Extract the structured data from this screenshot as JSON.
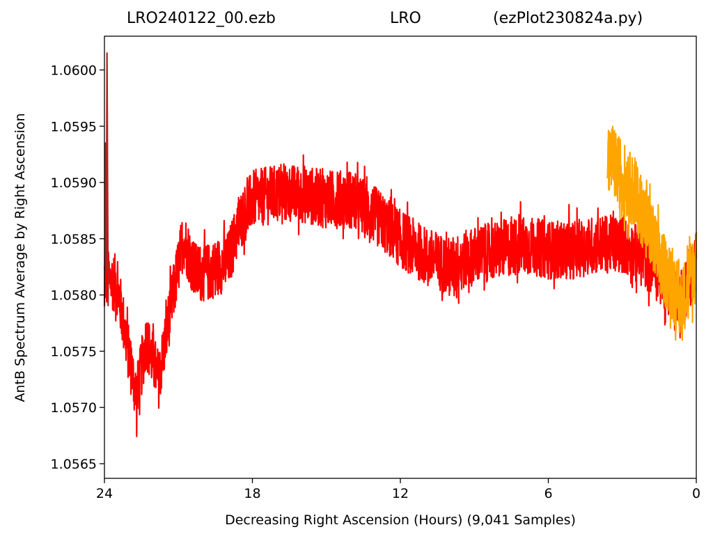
{
  "title": {
    "file": "LRO240122_00.ezb",
    "station": "LRO",
    "program": "(ezPlot230824a.py)"
  },
  "chart_data": {
    "type": "line",
    "xlabel": "Decreasing Right Ascension (Hours) (9,041 Samples)",
    "ylabel": "AntB Spectrum Average by Right Ascension",
    "xlim": [
      24,
      0
    ],
    "ylim": [
      1.05637,
      1.0603
    ],
    "x_ticks": [
      "24",
      "18",
      "12",
      "6",
      "0"
    ],
    "x_tick_values": [
      24,
      18,
      12,
      6,
      0
    ],
    "y_ticks": [
      "1.0565",
      "1.0570",
      "1.0575",
      "1.0580",
      "1.0585",
      "1.0590",
      "1.0595",
      "1.0600"
    ],
    "y_tick_values": [
      1.0565,
      1.057,
      1.0575,
      1.058,
      1.0585,
      1.059,
      1.0595,
      1.06
    ],
    "grid": false,
    "series": [
      {
        "color": "#ff0000",
        "x_range": [
          24,
          0
        ],
        "mean_trend": [
          [
            24.0,
            1.05815
          ],
          [
            23.5,
            1.0581
          ],
          [
            23.0,
            1.05745
          ],
          [
            22.7,
            1.0571
          ],
          [
            22.3,
            1.0576
          ],
          [
            21.8,
            1.05725
          ],
          [
            21.3,
            1.0579
          ],
          [
            20.8,
            1.0585
          ],
          [
            20.3,
            1.0582
          ],
          [
            19.8,
            1.0582
          ],
          [
            19.0,
            1.0583
          ],
          [
            18.5,
            1.05865
          ],
          [
            18.0,
            1.05885
          ],
          [
            17.0,
            1.0589
          ],
          [
            16.0,
            1.0589
          ],
          [
            15.0,
            1.05885
          ],
          [
            14.0,
            1.05885
          ],
          [
            13.0,
            1.0587
          ],
          [
            12.0,
            1.0585
          ],
          [
            11.0,
            1.05835
          ],
          [
            10.0,
            1.05825
          ],
          [
            9.0,
            1.05835
          ],
          [
            8.0,
            1.0584
          ],
          [
            7.0,
            1.05845
          ],
          [
            6.0,
            1.0584
          ],
          [
            5.0,
            1.0584
          ],
          [
            4.0,
            1.05845
          ],
          [
            3.0,
            1.05845
          ],
          [
            2.0,
            1.0583
          ],
          [
            1.0,
            1.05805
          ],
          [
            0.5,
            1.058
          ],
          [
            0.0,
            1.0583
          ]
        ],
        "noise_amplitude": 0.00026,
        "peak_max": 1.05951,
        "trough_min": 1.05655
      },
      {
        "color": "#ffa500",
        "x_range": [
          3.6,
          0
        ],
        "mean_trend": [
          [
            3.6,
            1.05925
          ],
          [
            3.0,
            1.05905
          ],
          [
            2.5,
            1.0589
          ],
          [
            2.0,
            1.05865
          ],
          [
            1.5,
            1.0583
          ],
          [
            1.0,
            1.0581
          ],
          [
            0.6,
            1.0579
          ],
          [
            0.3,
            1.05815
          ],
          [
            0.0,
            1.0583
          ]
        ],
        "noise_amplitude": 0.00032,
        "peak_max": 1.05993,
        "trough_min": 1.0576
      },
      {
        "color": "#b22222",
        "x_range": [
          24,
          23.85
        ],
        "spike_peak": 1.06015,
        "spike_base": 1.0579
      }
    ]
  }
}
